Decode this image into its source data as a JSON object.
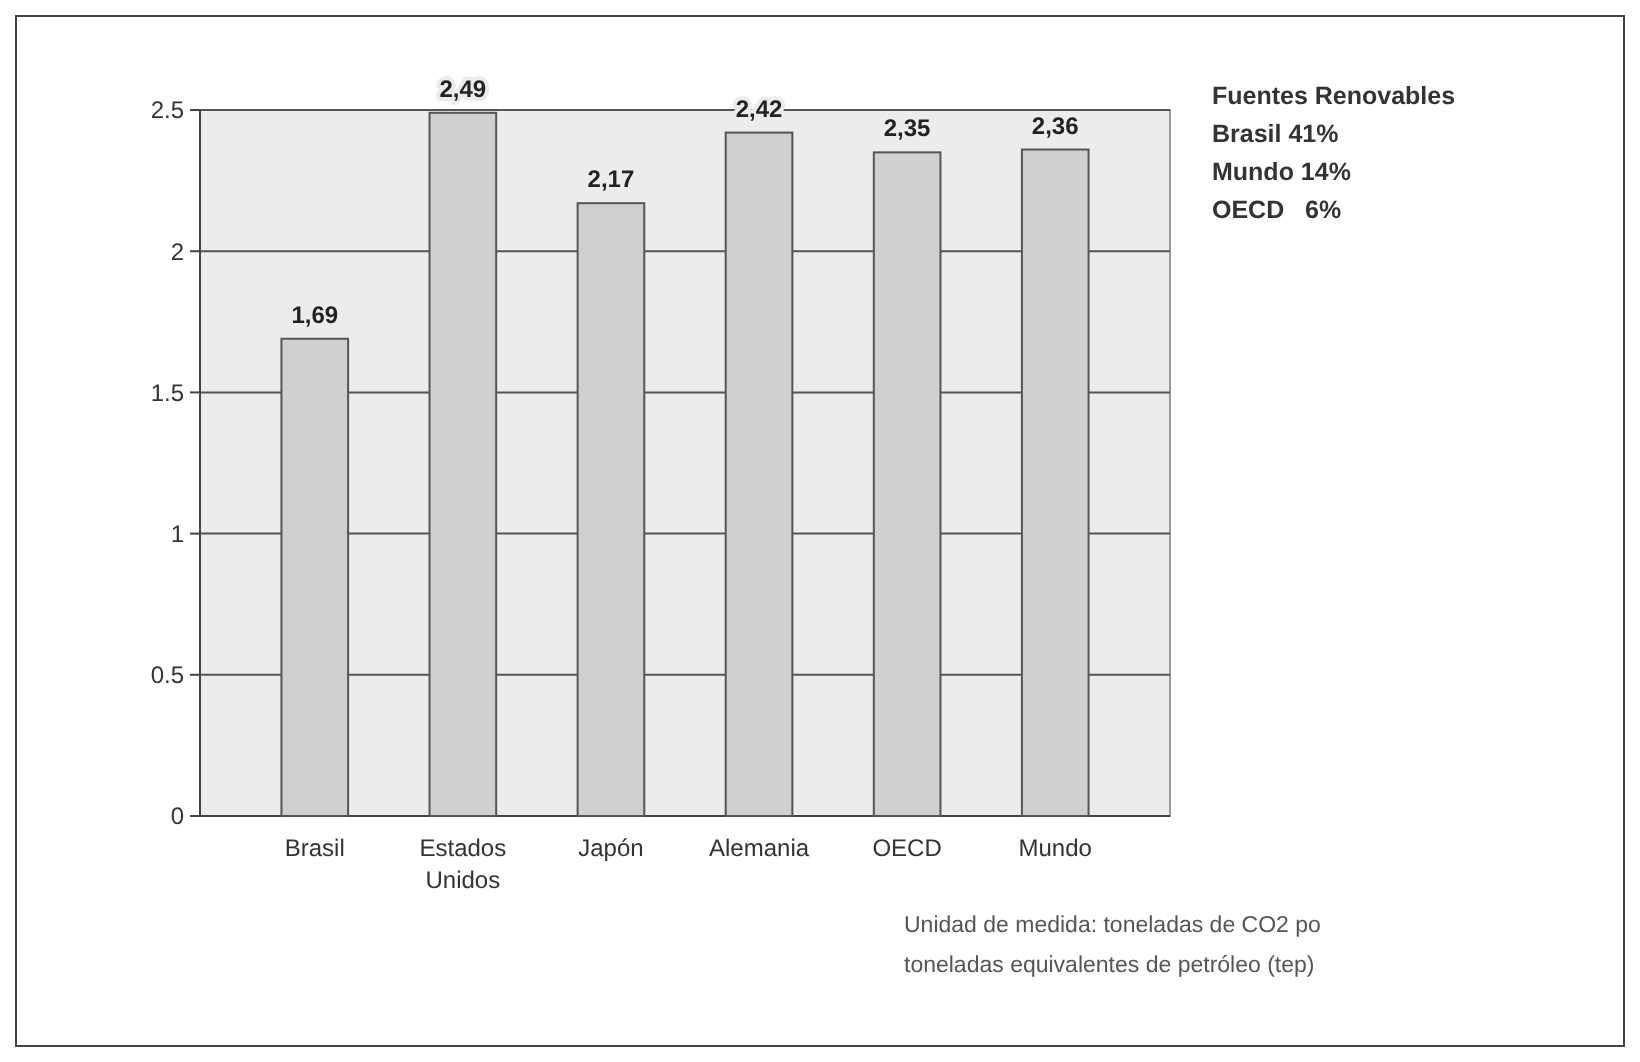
{
  "chart_data": {
    "type": "bar",
    "categories": [
      "Brasil",
      "Estados Unidos",
      "Japón",
      "Alemania",
      "OECD",
      "Mundo"
    ],
    "values": [
      1.69,
      2.49,
      2.17,
      2.42,
      2.35,
      2.36
    ],
    "value_labels": [
      "1,69",
      "2,49",
      "2,17",
      "2,42",
      "2,35",
      "2,36"
    ],
    "color": "#d0d0d0",
    "ylim": [
      0,
      2.5
    ],
    "yticks": [
      0,
      0.5,
      1,
      1.5,
      2,
      2.5
    ],
    "grid": "y",
    "annotations": [
      "Fuentes Renovables",
      "Brasil 41%",
      "Mundo 14%",
      "OECD   6%",
      "Unidad de medida: toneladas de CO2 po",
      "toneladas equivalentes de petróleo (tep)"
    ]
  }
}
